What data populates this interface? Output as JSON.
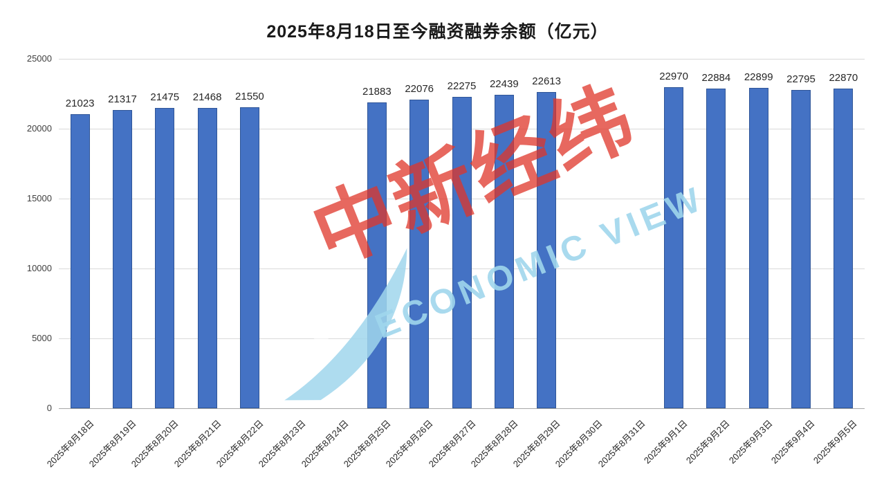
{
  "title": "2025年8月18日至今融资融券余额（亿元）",
  "watermark": {
    "cn": "中新经纬",
    "en": "ECONOMIC VIEW"
  },
  "colors": {
    "bar": "#4472c4",
    "bar_border": "#2f5597",
    "gridline": "#d9d9d9",
    "watermark_red": "#df352a",
    "watermark_blue": "#a0d6ec"
  },
  "chart_data": {
    "type": "bar",
    "title": "2025年8月18日至今融资融券余额（亿元）",
    "categories": [
      "2025年8月18日",
      "2025年8月19日",
      "2025年8月20日",
      "2025年8月21日",
      "2025年8月22日",
      "2025年8月23日",
      "2025年8月24日",
      "2025年8月25日",
      "2025年8月26日",
      "2025年8月27日",
      "2025年8月28日",
      "2025年8月29日",
      "2025年8月30日",
      "2025年8月31日",
      "2025年9月1日",
      "2025年9月2日",
      "2025年9月3日",
      "2025年9月4日",
      "2025年9月5日"
    ],
    "values": [
      21023,
      21317,
      21475,
      21468,
      21550,
      null,
      null,
      21883,
      22076,
      22275,
      22439,
      22613,
      null,
      null,
      22970,
      22884,
      22899,
      22795,
      22870
    ],
    "xlabel": "",
    "ylabel": "",
    "ylim": [
      0,
      25000
    ],
    "yticks": [
      0,
      5000,
      10000,
      15000,
      20000,
      25000
    ],
    "grid": true,
    "legend": "none"
  }
}
